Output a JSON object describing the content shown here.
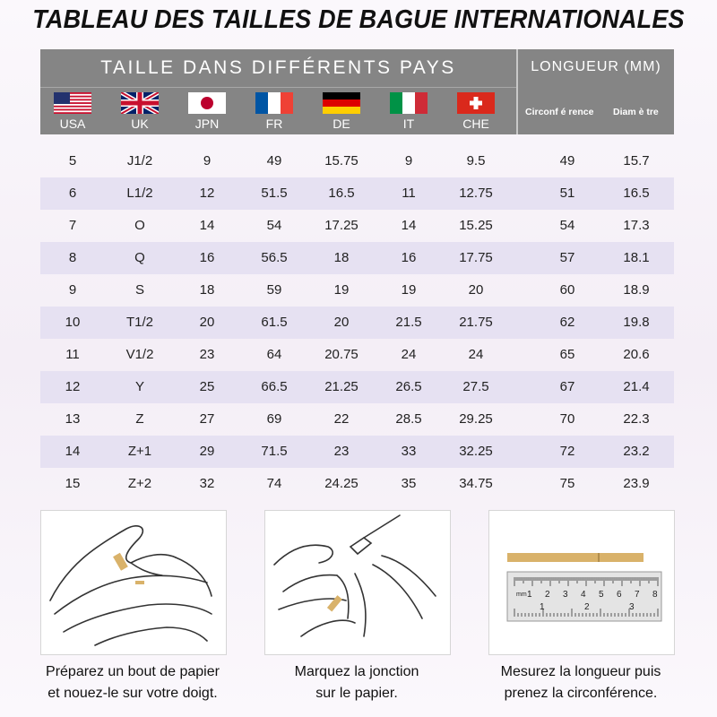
{
  "title": "TABLEAU DES TAILLES DE BAGUE INTERNATIONALES",
  "header": {
    "country_title": "TAILLE DANS DIFFÉRENTS PAYS",
    "length_title": "LONGUEUR (MM)",
    "countries": [
      "USA",
      "UK",
      "JPN",
      "FR",
      "DE",
      "IT",
      "CHE"
    ],
    "length_columns": [
      "Circonf é rence",
      "Diam è tre"
    ]
  },
  "rows": [
    [
      "5",
      "J1/2",
      "9",
      "49",
      "15.75",
      "9",
      "9.5",
      "49",
      "15.7"
    ],
    [
      "6",
      "L1/2",
      "12",
      "51.5",
      "16.5",
      "11",
      "12.75",
      "51",
      "16.5"
    ],
    [
      "7",
      "O",
      "14",
      "54",
      "17.25",
      "14",
      "15.25",
      "54",
      "17.3"
    ],
    [
      "8",
      "Q",
      "16",
      "56.5",
      "18",
      "16",
      "17.75",
      "57",
      "18.1"
    ],
    [
      "9",
      "S",
      "18",
      "59",
      "19",
      "19",
      "20",
      "60",
      "18.9"
    ],
    [
      "10",
      "T1/2",
      "20",
      "61.5",
      "20",
      "21.5",
      "21.75",
      "62",
      "19.8"
    ],
    [
      "11",
      "V1/2",
      "23",
      "64",
      "20.75",
      "24",
      "24",
      "65",
      "20.6"
    ],
    [
      "12",
      "Y",
      "25",
      "66.5",
      "21.25",
      "26.5",
      "27.5",
      "67",
      "21.4"
    ],
    [
      "13",
      "Z",
      "27",
      "69",
      "22",
      "28.5",
      "29.25",
      "70",
      "22.3"
    ],
    [
      "14",
      "Z+1",
      "29",
      "71.5",
      "23",
      "33",
      "32.25",
      "72",
      "23.2"
    ],
    [
      "15",
      "Z+2",
      "32",
      "74",
      "24.25",
      "35",
      "34.75",
      "75",
      "23.9"
    ]
  ],
  "steps": [
    {
      "line1": "Préparez un bout de papier",
      "line2": "et nouez-le sur votre doigt."
    },
    {
      "line1": "Marquez la jonction",
      "line2": "sur le papier."
    },
    {
      "line1": "Mesurez la longueur puis",
      "line2": "prenez la circonférence."
    }
  ],
  "ruler_numbers_top": [
    "1",
    "2",
    "3",
    "4",
    "5",
    "6",
    "7",
    "8"
  ],
  "ruler_numbers_bottom": [
    "1",
    "2",
    "3"
  ],
  "ruler_unit": "mm",
  "colors": {
    "header_bg": "#858585",
    "alt_row": "#e6e1f2",
    "paper_strip": "#d9b26a"
  }
}
